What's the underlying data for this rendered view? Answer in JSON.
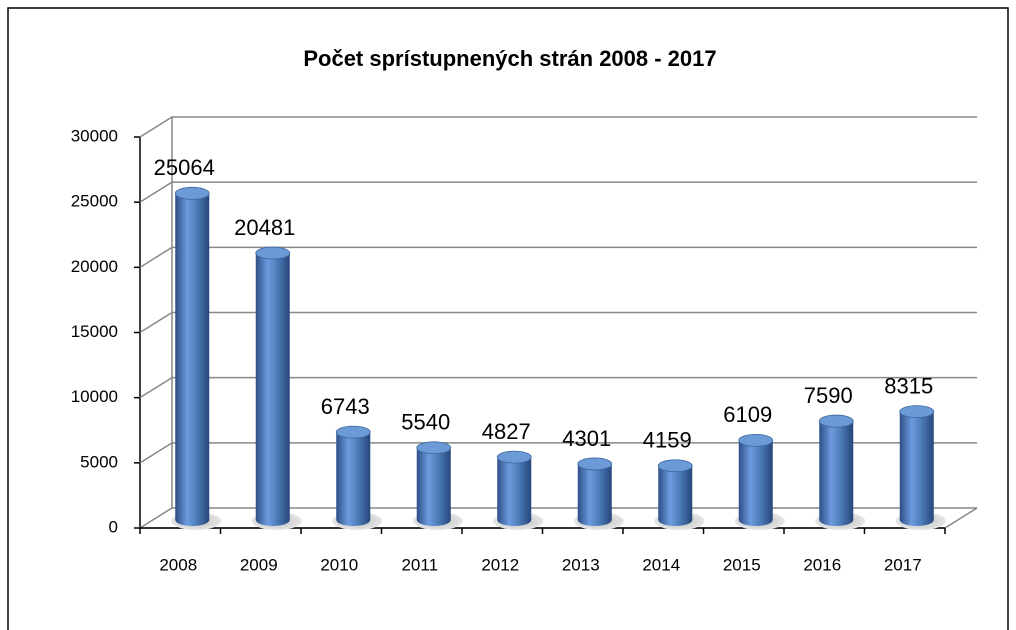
{
  "chart_data": {
    "type": "bar3d",
    "title": "Počet sprístupnených strán 2008 - 2017",
    "categories": [
      "2008",
      "2009",
      "2010",
      "2011",
      "2012",
      "2013",
      "2014",
      "2015",
      "2016",
      "2017"
    ],
    "values": [
      25064,
      20481,
      6743,
      5540,
      4827,
      4301,
      4159,
      6109,
      7590,
      8315
    ],
    "color": "#4f81bd",
    "ylim": [
      0,
      30000
    ],
    "yticks": [
      0,
      5000,
      10000,
      15000,
      20000,
      25000,
      30000
    ],
    "grid": true
  }
}
